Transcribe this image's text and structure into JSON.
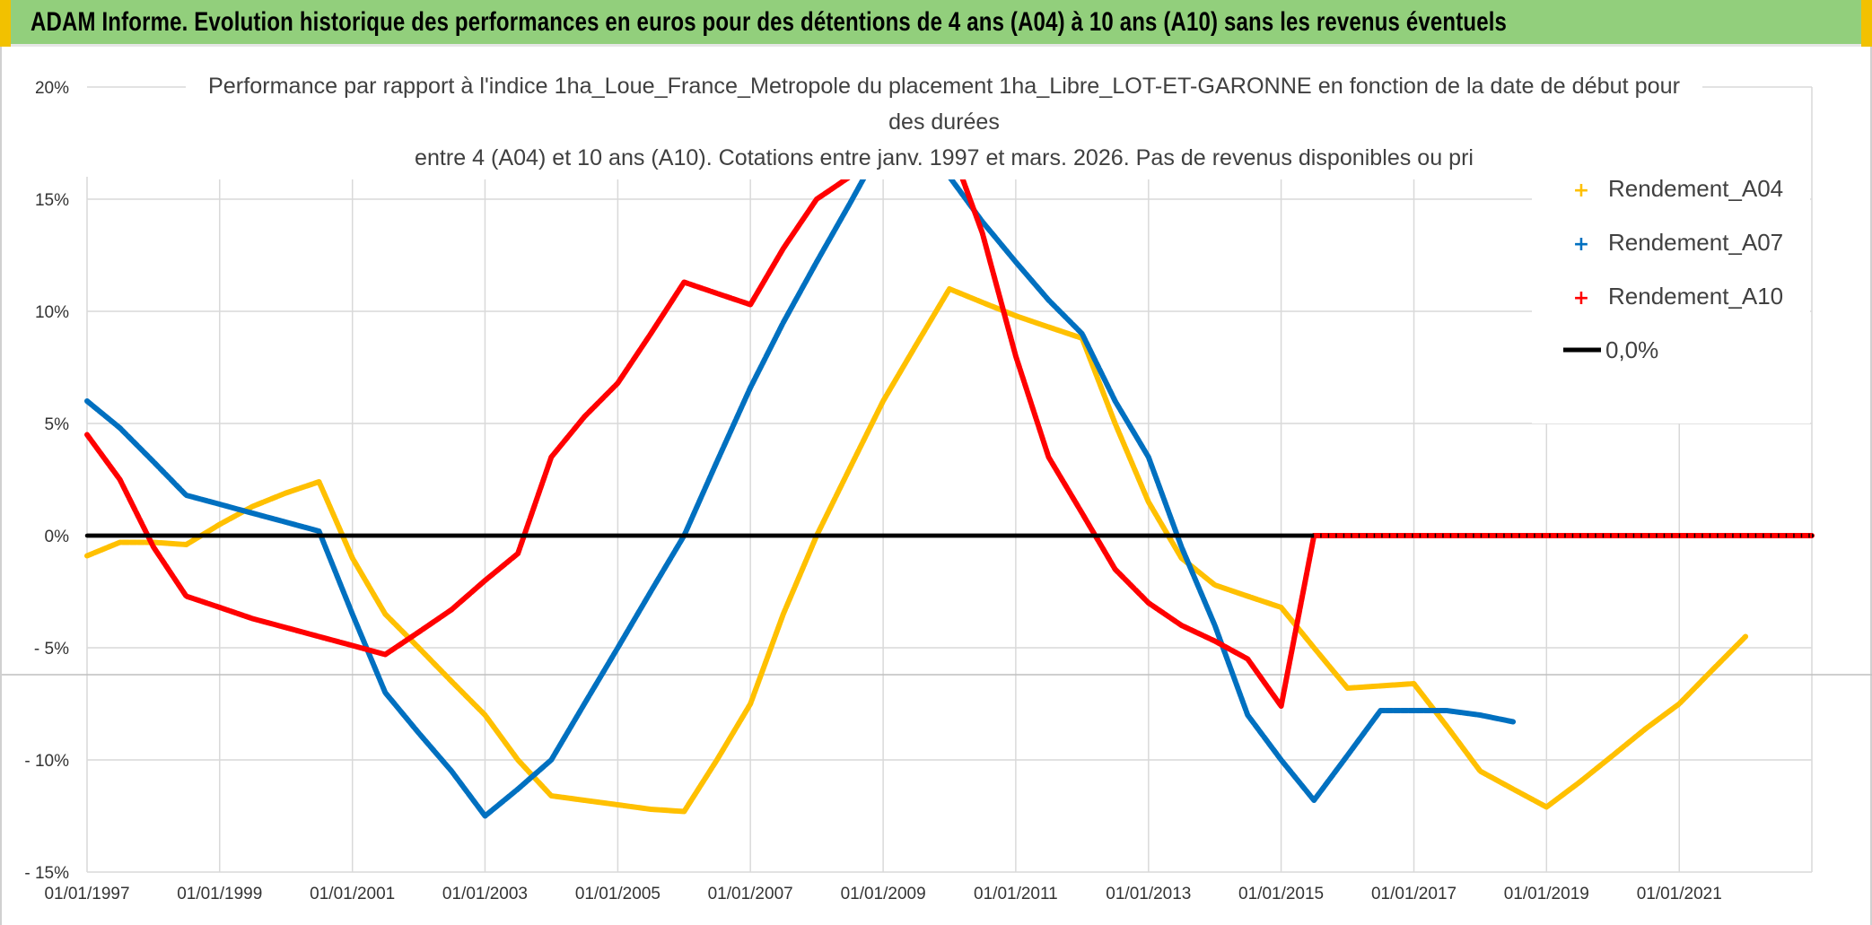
{
  "banner": {
    "title": "ADAM Informe. Evolution historique des performances en euros pour des détentions de 4 ans (A04) à 10 ans (A10) sans les revenus éventuels"
  },
  "colors": {
    "banner_bg": "#92cf7c",
    "a04": "#ffc000",
    "a07": "#0070c0",
    "a10": "#ff0000",
    "zero": "#000000"
  },
  "chart_data": {
    "type": "line",
    "title": [
      "Performance  par rapport à l'indice 1ha_Loue_France_Metropole  du placement 1ha_Libre_LOT-ET-GARONNE en fonction de la date de début pour",
      "des durées",
      "entre 4 (A04) et 10 ans (A10). Cotations entre janv. 1997 et mars. 2026. Pas de revenus disponibles ou pri"
    ],
    "x_axis": {
      "type": "date",
      "min": "1997-01-01",
      "max": "2023-01-01",
      "tick_labels": [
        "01/01/1997",
        "01/01/1999",
        "01/01/2001",
        "01/01/2003",
        "01/01/2005",
        "01/01/2007",
        "01/01/2009",
        "01/01/2011",
        "01/01/2013",
        "01/01/2015",
        "01/01/2017",
        "01/01/2019",
        "01/01/2021"
      ],
      "tick_dates": [
        "1997-01-01",
        "1999-01-01",
        "2001-01-01",
        "2003-01-01",
        "2005-01-01",
        "2007-01-01",
        "2009-01-01",
        "2011-01-01",
        "2013-01-01",
        "2015-01-01",
        "2017-01-01",
        "2019-01-01",
        "2021-01-01"
      ]
    },
    "y_axis": {
      "min": -15,
      "max": 20,
      "step": 5,
      "tick_labels": [
        "20%",
        "15%",
        "10%",
        "5%",
        "0%",
        "- 5%",
        "- 10%",
        "- 15%"
      ],
      "tick_values": [
        20,
        15,
        10,
        5,
        0,
        -5,
        -10,
        -15
      ]
    },
    "grid": true,
    "legend_position": "top-right",
    "series": [
      {
        "name": "Rendement_A04",
        "color": "#ffc000",
        "points": [
          [
            "1997-01-01",
            -0.9
          ],
          [
            "1997-07-01",
            -0.3
          ],
          [
            "1998-01-01",
            -0.3
          ],
          [
            "1998-07-01",
            -0.4
          ],
          [
            "1999-01-01",
            0.5
          ],
          [
            "1999-07-01",
            1.3
          ],
          [
            "2000-01-01",
            1.9
          ],
          [
            "2000-07-01",
            2.4
          ],
          [
            "2001-01-01",
            -1.0
          ],
          [
            "2001-07-01",
            -3.5
          ],
          [
            "2002-01-01",
            -5.0
          ],
          [
            "2002-07-01",
            -6.5
          ],
          [
            "2003-01-01",
            -8.0
          ],
          [
            "2003-07-01",
            -10.0
          ],
          [
            "2004-01-01",
            -11.6
          ],
          [
            "2004-07-01",
            -11.8
          ],
          [
            "2005-01-01",
            -12.0
          ],
          [
            "2005-07-01",
            -12.2
          ],
          [
            "2006-01-01",
            -12.3
          ],
          [
            "2006-07-01",
            -10.0
          ],
          [
            "2007-01-01",
            -7.5
          ],
          [
            "2007-07-01",
            -3.5
          ],
          [
            "2008-01-01",
            0.0
          ],
          [
            "2008-07-01",
            3.0
          ],
          [
            "2009-01-01",
            6.0
          ],
          [
            "2009-07-01",
            8.5
          ],
          [
            "2010-01-01",
            11.0
          ],
          [
            "2010-07-01",
            10.4
          ],
          [
            "2011-01-01",
            9.8
          ],
          [
            "2011-07-01",
            9.3
          ],
          [
            "2012-01-01",
            8.8
          ],
          [
            "2012-07-01",
            5.0
          ],
          [
            "2013-01-01",
            1.5
          ],
          [
            "2013-07-01",
            -1.0
          ],
          [
            "2014-01-01",
            -2.2
          ],
          [
            "2014-07-01",
            -2.7
          ],
          [
            "2015-01-01",
            -3.2
          ],
          [
            "2015-07-01",
            -5.0
          ],
          [
            "2016-01-01",
            -6.8
          ],
          [
            "2016-07-01",
            -6.7
          ],
          [
            "2017-01-01",
            -6.6
          ],
          [
            "2017-07-01",
            -8.5
          ],
          [
            "2018-01-01",
            -10.5
          ],
          [
            "2018-07-01",
            -11.3
          ],
          [
            "2019-01-01",
            -12.1
          ],
          [
            "2019-07-01",
            -11.0
          ],
          [
            "2020-01-01",
            -9.8
          ],
          [
            "2020-07-01",
            -8.6
          ],
          [
            "2021-01-01",
            -7.5
          ],
          [
            "2021-07-01",
            -6.0
          ],
          [
            "2022-01-01",
            -4.5
          ]
        ]
      },
      {
        "name": "Rendement_A07",
        "color": "#0070c0",
        "points": [
          [
            "1997-01-01",
            6.0
          ],
          [
            "1997-07-01",
            4.8
          ],
          [
            "1998-01-01",
            3.3
          ],
          [
            "1998-07-01",
            1.8
          ],
          [
            "1999-01-01",
            1.4
          ],
          [
            "1999-07-01",
            1.0
          ],
          [
            "2000-01-01",
            0.6
          ],
          [
            "2000-07-01",
            0.2
          ],
          [
            "2001-01-01",
            -3.5
          ],
          [
            "2001-07-01",
            -7.0
          ],
          [
            "2002-01-01",
            -8.8
          ],
          [
            "2002-07-01",
            -10.5
          ],
          [
            "2003-01-01",
            -12.5
          ],
          [
            "2003-07-01",
            -11.3
          ],
          [
            "2004-01-01",
            -10.0
          ],
          [
            "2004-07-01",
            -7.5
          ],
          [
            "2005-01-01",
            -5.0
          ],
          [
            "2005-07-01",
            -2.5
          ],
          [
            "2006-01-01",
            0.0
          ],
          [
            "2006-07-01",
            3.3
          ],
          [
            "2007-01-01",
            6.6
          ],
          [
            "2007-07-01",
            9.5
          ],
          [
            "2008-01-01",
            12.2
          ],
          [
            "2008-07-01",
            14.8
          ],
          [
            "2009-01-01",
            17.5
          ],
          [
            "2009-07-01",
            16.5
          ],
          [
            "2010-01-01",
            16.0
          ],
          [
            "2010-07-01",
            14.0
          ],
          [
            "2011-01-01",
            12.2
          ],
          [
            "2011-07-01",
            10.5
          ],
          [
            "2012-01-01",
            9.0
          ],
          [
            "2012-07-01",
            6.0
          ],
          [
            "2013-01-01",
            3.5
          ],
          [
            "2013-07-01",
            -0.5
          ],
          [
            "2014-01-01",
            -4.0
          ],
          [
            "2014-07-01",
            -8.0
          ],
          [
            "2015-01-01",
            -10.0
          ],
          [
            "2015-07-01",
            -11.8
          ],
          [
            "2016-01-01",
            -9.8
          ],
          [
            "2016-07-01",
            -7.8
          ],
          [
            "2017-01-01",
            -7.8
          ],
          [
            "2017-07-01",
            -7.8
          ],
          [
            "2018-01-01",
            -8.0
          ],
          [
            "2018-07-01",
            -8.3
          ]
        ]
      },
      {
        "name": "Rendement_A10",
        "color": "#ff0000",
        "points": [
          [
            "1997-01-01",
            4.5
          ],
          [
            "1997-07-01",
            2.5
          ],
          [
            "1998-01-01",
            -0.5
          ],
          [
            "1998-07-01",
            -2.7
          ],
          [
            "1999-01-01",
            -3.2
          ],
          [
            "1999-07-01",
            -3.7
          ],
          [
            "2000-01-01",
            -4.1
          ],
          [
            "2000-07-01",
            -4.5
          ],
          [
            "2001-01-01",
            -4.9
          ],
          [
            "2001-07-01",
            -5.3
          ],
          [
            "2002-01-01",
            -4.3
          ],
          [
            "2002-07-01",
            -3.3
          ],
          [
            "2003-01-01",
            -2.0
          ],
          [
            "2003-07-01",
            -0.8
          ],
          [
            "2004-01-01",
            3.5
          ],
          [
            "2004-07-01",
            5.3
          ],
          [
            "2005-01-01",
            6.8
          ],
          [
            "2005-07-01",
            9.0
          ],
          [
            "2006-01-01",
            11.3
          ],
          [
            "2006-07-01",
            10.8
          ],
          [
            "2007-01-01",
            10.3
          ],
          [
            "2007-07-01",
            12.8
          ],
          [
            "2008-01-01",
            15.0
          ],
          [
            "2008-07-01",
            16.0
          ],
          [
            "2009-01-01",
            17.5
          ],
          [
            "2010-01-01",
            17.5
          ],
          [
            "2010-07-01",
            13.5
          ],
          [
            "2011-01-01",
            8.0
          ],
          [
            "2011-07-01",
            3.5
          ],
          [
            "2012-01-01",
            1.0
          ],
          [
            "2012-07-01",
            -1.5
          ],
          [
            "2013-01-01",
            -3.0
          ],
          [
            "2013-07-01",
            -4.0
          ],
          [
            "2014-01-01",
            -4.7
          ],
          [
            "2014-07-01",
            -5.5
          ],
          [
            "2015-01-01",
            -7.6
          ],
          [
            "2015-07-01",
            0.0
          ],
          [
            "2016-07-01",
            0.0
          ],
          [
            "2017-07-01",
            0.0
          ],
          [
            "2018-07-01",
            0.0
          ],
          [
            "2019-07-01",
            0.0
          ],
          [
            "2020-07-01",
            0.0
          ],
          [
            "2021-07-01",
            0.0
          ],
          [
            "2023-01-01",
            0.0
          ]
        ]
      },
      {
        "name": "0,0%",
        "color": "#000000",
        "points": [
          [
            "1997-01-01",
            0.0
          ],
          [
            "2023-01-01",
            0.0
          ]
        ]
      }
    ]
  }
}
